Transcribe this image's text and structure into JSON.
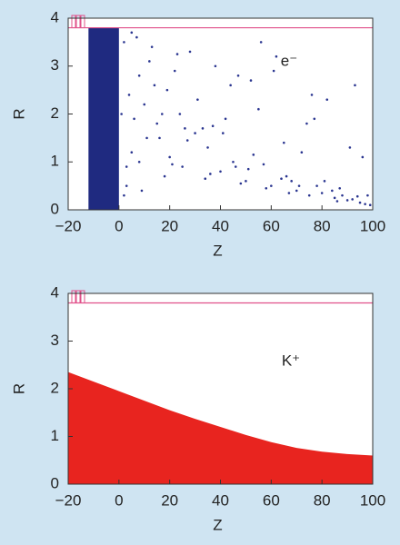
{
  "chart_data": [
    {
      "type": "scatter",
      "annotation": "e⁻",
      "xlabel": "Z",
      "ylabel": "R",
      "xlim": [
        -20,
        100
      ],
      "ylim": [
        0,
        4
      ],
      "xticks": [
        {
          "value": -20,
          "label": "−20"
        },
        0,
        20,
        40,
        60,
        80,
        100
      ],
      "yticks": [
        0,
        1,
        2,
        3,
        4
      ],
      "grid": false,
      "hline": 3.8,
      "hline_color": "#e0508a",
      "series": [
        {
          "type": "area",
          "color": "#1f2a80",
          "x": [
            -12,
            0
          ],
          "values": [
            3.8,
            3.8
          ]
        },
        {
          "color": "#2a3590",
          "x": [
            2,
            5,
            8,
            3,
            10,
            15,
            20,
            12,
            25,
            30,
            4,
            7,
            18,
            22,
            35,
            40,
            28,
            45,
            50,
            55,
            33,
            60,
            65,
            70,
            75,
            80,
            85,
            90,
            95,
            98,
            6,
            9,
            14,
            16,
            24,
            38,
            42,
            48,
            52,
            58,
            62,
            68,
            72,
            78,
            82,
            88,
            92,
            96,
            99,
            3,
            11,
            19,
            27,
            36,
            44,
            53,
            64,
            74,
            84,
            94,
            1,
            13,
            21,
            31,
            41,
            51,
            61,
            71,
            81,
            91,
            5,
            17,
            26,
            34,
            46,
            56,
            66,
            76,
            86,
            97,
            2,
            8,
            23,
            37,
            47,
            57,
            67,
            77,
            87,
            93
          ],
          "values": [
            3.5,
            1.2,
            2.8,
            0.5,
            2.2,
            1.8,
            1.1,
            3.1,
            0.9,
            1.6,
            2.4,
            3.6,
            0.7,
            2.9,
            1.3,
            0.8,
            3.3,
            1.0,
            0.6,
            2.1,
            1.7,
            0.5,
            1.4,
            0.4,
            0.3,
            0.35,
            0.25,
            0.2,
            0.15,
            0.3,
            1.9,
            0.4,
            2.6,
            1.5,
            2.0,
            3.0,
            1.9,
            0.55,
            2.7,
            0.45,
            3.2,
            0.6,
            1.2,
            0.5,
            2.3,
            0.3,
            0.22,
            1.1,
            0.1,
            0.9,
            1.5,
            2.5,
            1.45,
            0.75,
            2.6,
            1.15,
            0.65,
            1.8,
            0.4,
            0.28,
            2.0,
            3.4,
            0.95,
            2.3,
            1.6,
            0.85,
            2.9,
            0.5,
            0.6,
            1.3,
            3.7,
            2.0,
            1.7,
            0.65,
            0.9,
            3.5,
            0.7,
            2.4,
            0.18,
            0.12,
            0.3,
            1.0,
            3.25,
            1.75,
            2.8,
            0.95,
            0.35,
            1.9,
            0.45,
            2.6
          ]
        }
      ]
    },
    {
      "type": "area",
      "annotation": "K⁺",
      "xlabel": "Z",
      "ylabel": "R",
      "xlim": [
        -20,
        100
      ],
      "ylim": [
        0,
        4
      ],
      "xticks": [
        {
          "value": -20,
          "label": "−20"
        },
        0,
        20,
        40,
        60,
        80,
        100
      ],
      "yticks": [
        0,
        1,
        2,
        3,
        4
      ],
      "grid": false,
      "hline": 3.8,
      "hline_color": "#e0508a",
      "series": [
        {
          "color": "#e8241f",
          "x": [
            -20,
            -10,
            0,
            10,
            20,
            30,
            40,
            50,
            60,
            70,
            80,
            90,
            100
          ],
          "values": [
            2.35,
            2.15,
            1.95,
            1.75,
            1.55,
            1.37,
            1.2,
            1.03,
            0.88,
            0.76,
            0.68,
            0.63,
            0.6
          ]
        }
      ]
    }
  ]
}
